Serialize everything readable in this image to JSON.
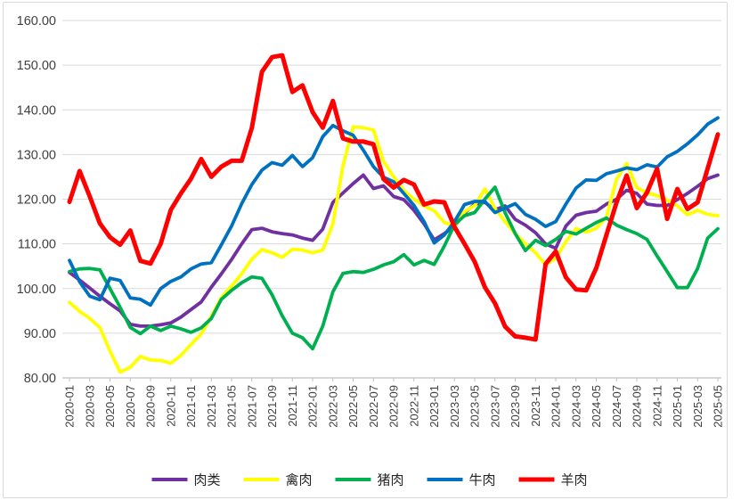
{
  "chart_data": {
    "type": "line",
    "title": "",
    "grid": true,
    "legend_position": "bottom",
    "ylim": [
      80,
      160
    ],
    "y_tick_labels": [
      "160.00",
      "150.00",
      "140.00",
      "130.00",
      "120.00",
      "110.00",
      "100.00",
      "90.00",
      "80.00"
    ],
    "n_points": 65,
    "label_step": 2,
    "x_tick_labels": [
      "2020-01",
      "2020-03",
      "2020-05",
      "2020-07",
      "2020-09",
      "2020-11",
      "2021-01",
      "2021-03",
      "2021-05",
      "2021-07",
      "2021-09",
      "2021-11",
      "2022-01",
      "2022-03",
      "2022-05",
      "2022-07",
      "2022-09",
      "2022-11",
      "2023-01",
      "2023-03",
      "2023-05",
      "2023-07",
      "2023-09",
      "2023-11",
      "2024-01",
      "2024-03",
      "2024-05",
      "2024-07",
      "2024-09",
      "2024-11",
      "2025-01",
      "2025-03",
      "2025-05"
    ],
    "axis_color": "#bfbfbf",
    "grid_color": "#d9d9d9",
    "tick_label_color": "#404040",
    "legend_text_color": "#262626",
    "series": [
      {
        "name": "肉类",
        "color": "#7030a0",
        "width": 3.8,
        "values": [
          103.6,
          101.9,
          100.1,
          98.3,
          96.6,
          95.0,
          92.0,
          91.6,
          91.6,
          91.9,
          92.3,
          93.6,
          95.3,
          97.0,
          100.3,
          103.3,
          106.5,
          110.0,
          113.2,
          113.5,
          112.7,
          112.3,
          112.0,
          111.3,
          110.8,
          113.3,
          119.3,
          121.4,
          123.5,
          125.4,
          122.4,
          123.0,
          120.6,
          119.9,
          117.5,
          114.5,
          110.9,
          112.3,
          113.9,
          116.9,
          118.9,
          119.3,
          117.6,
          118.5,
          115.5,
          114.2,
          112.5,
          110.0,
          109.0,
          114.0,
          116.4,
          117.0,
          117.3,
          118.9,
          120.0,
          122.0,
          121.3,
          118.9,
          118.6,
          118.6,
          119.9,
          121.3,
          122.9,
          124.6,
          125.4
        ]
      },
      {
        "name": "禽肉",
        "color": "#ffff00",
        "width": 3.8,
        "values": [
          96.9,
          94.9,
          93.3,
          91.3,
          86.0,
          81.3,
          82.4,
          84.8,
          84.0,
          83.9,
          83.3,
          85.0,
          87.5,
          89.8,
          93.8,
          98.0,
          100.6,
          103.3,
          106.6,
          108.7,
          108.0,
          107.0,
          108.8,
          108.6,
          108.0,
          108.6,
          114.5,
          127.5,
          136.2,
          136.0,
          135.5,
          128.5,
          125.0,
          122.0,
          120.0,
          118.5,
          117.4,
          114.8,
          113.9,
          117.2,
          118.6,
          122.3,
          117.9,
          115.0,
          112.3,
          110.0,
          108.0,
          105.3,
          106.8,
          110.5,
          113.4,
          112.6,
          113.5,
          116.0,
          124.5,
          128.0,
          122.6,
          121.4,
          120.8,
          119.8,
          118.5,
          116.5,
          117.5,
          116.6,
          116.3
        ]
      },
      {
        "name": "猪肉",
        "color": "#00b050",
        "width": 3.8,
        "values": [
          103.8,
          104.4,
          104.5,
          104.2,
          100.0,
          95.8,
          91.3,
          89.9,
          91.6,
          90.6,
          91.6,
          91.0,
          90.2,
          91.2,
          93.3,
          97.6,
          99.6,
          101.3,
          102.6,
          102.3,
          98.6,
          93.9,
          90.0,
          89.0,
          86.5,
          91.6,
          99.3,
          103.4,
          103.8,
          103.6,
          104.3,
          105.3,
          106.0,
          107.6,
          105.3,
          106.3,
          105.4,
          109.5,
          114.3,
          116.3,
          117.0,
          120.0,
          122.7,
          117.0,
          112.3,
          108.5,
          110.8,
          109.6,
          111.0,
          112.8,
          112.2,
          113.5,
          114.8,
          115.8,
          114.2,
          113.2,
          112.3,
          111.0,
          107.3,
          103.8,
          100.2,
          100.2,
          104.5,
          111.3,
          113.4
        ]
      },
      {
        "name": "牛肉",
        "color": "#0070c0",
        "width": 3.8,
        "values": [
          106.3,
          101.5,
          98.3,
          97.5,
          102.3,
          101.8,
          97.9,
          97.6,
          96.3,
          100.0,
          101.6,
          102.6,
          104.4,
          105.5,
          105.8,
          109.8,
          114.0,
          119.0,
          123.3,
          126.5,
          128.2,
          127.6,
          129.8,
          127.3,
          129.3,
          134.0,
          136.5,
          135.3,
          134.3,
          131.0,
          127.3,
          124.9,
          123.9,
          121.3,
          118.6,
          115.0,
          110.2,
          112.0,
          115.0,
          118.8,
          119.5,
          119.5,
          117.0,
          118.0,
          119.0,
          116.6,
          115.5,
          113.9,
          115.0,
          118.9,
          122.5,
          124.3,
          124.2,
          125.7,
          126.3,
          127.0,
          126.6,
          127.7,
          127.2,
          129.5,
          130.7,
          132.4,
          134.4,
          136.8,
          138.2
        ]
      },
      {
        "name": "羊肉",
        "color": "#ff0000",
        "width": 5.0,
        "values": [
          119.4,
          126.3,
          120.6,
          114.6,
          111.5,
          109.8,
          113.0,
          106.2,
          105.6,
          110.0,
          117.6,
          121.3,
          124.6,
          129.0,
          125.0,
          127.3,
          128.6,
          128.6,
          136.0,
          148.5,
          151.8,
          152.2,
          144.0,
          145.5,
          139.5,
          136.0,
          142.0,
          133.6,
          132.9,
          132.9,
          132.3,
          124.5,
          122.6,
          124.3,
          123.3,
          118.8,
          119.5,
          119.3,
          113.8,
          110.0,
          106.0,
          100.3,
          96.7,
          91.5,
          89.3,
          89.0,
          88.6,
          105.5,
          108.3,
          102.5,
          99.8,
          99.6,
          104.6,
          112.0,
          119.3,
          125.3,
          118.0,
          121.5,
          126.8,
          115.6,
          122.3,
          117.8,
          119.3,
          126.9,
          134.5
        ]
      }
    ]
  }
}
